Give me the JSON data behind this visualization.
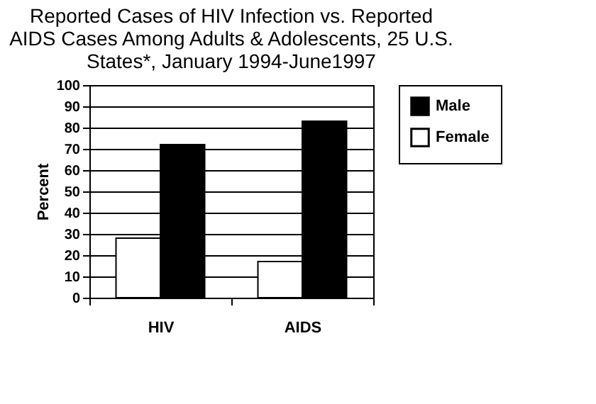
{
  "chart_data": {
    "type": "bar",
    "title": [
      "Reported Cases of HIV Infection vs. Reported",
      "AIDS Cases Among Adults & Adolescents, 25 U.S.",
      "States*, January 1994-June1997"
    ],
    "ylabel": "Percent",
    "categories": [
      "HIV",
      "AIDS"
    ],
    "series": [
      {
        "name": "Male",
        "color": "#000000",
        "values": [
          72,
          83
        ]
      },
      {
        "name": "Female",
        "color": "#ffffff",
        "values": [
          28,
          17
        ]
      }
    ],
    "ylim": [
      0,
      100
    ],
    "yticks": [
      0,
      10,
      20,
      30,
      40,
      50,
      60,
      70,
      80,
      90,
      100
    ],
    "grid": "y",
    "legend": "right"
  }
}
